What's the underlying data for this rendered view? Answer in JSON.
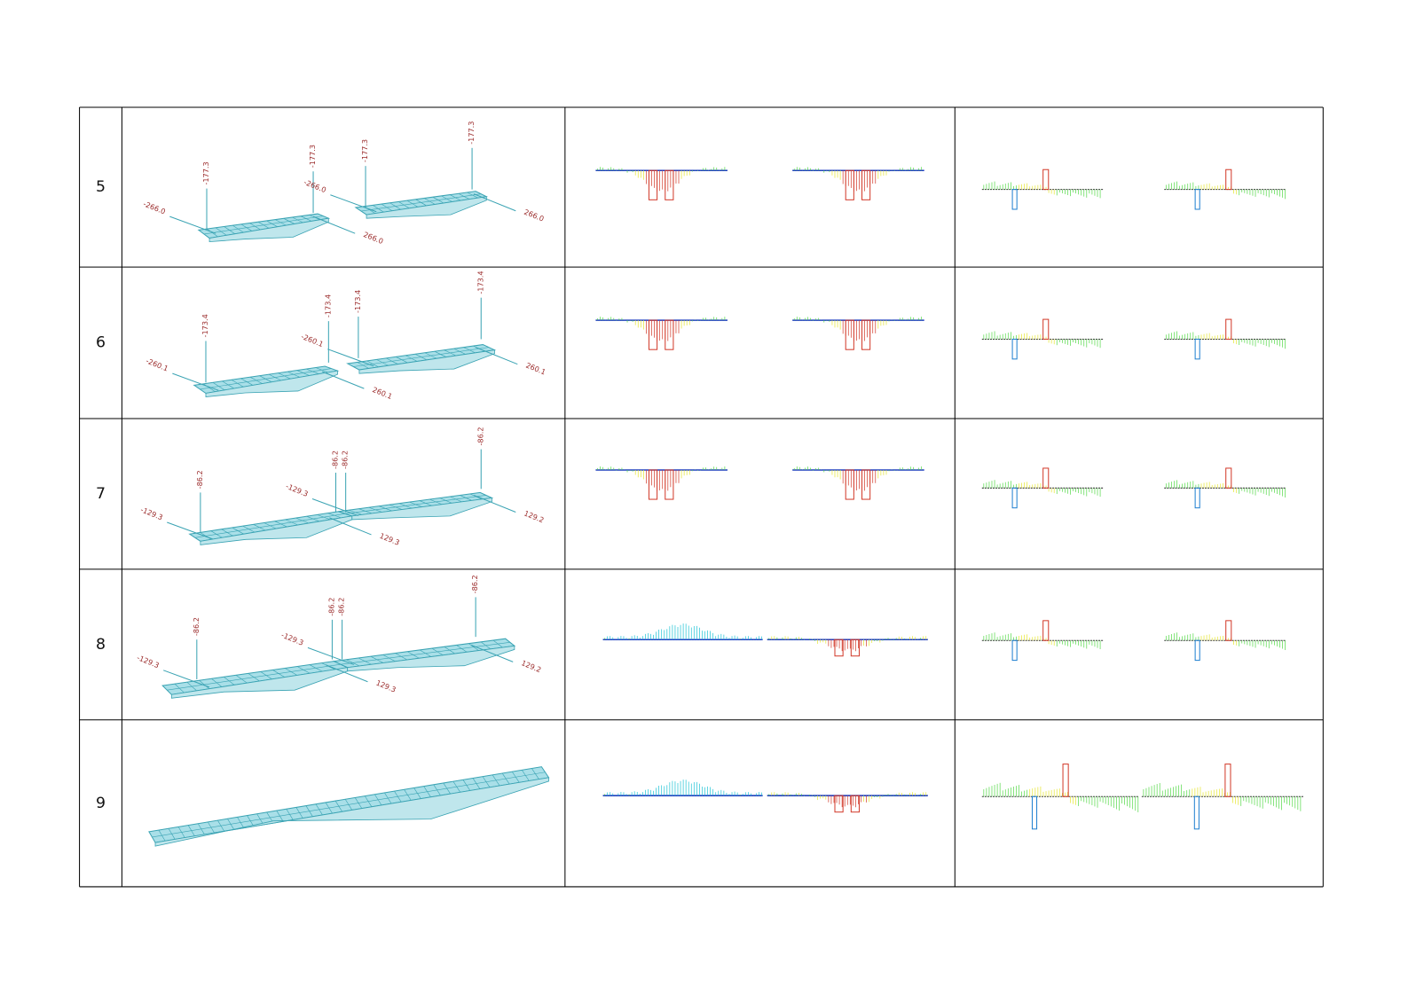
{
  "table": {
    "rows": [
      {
        "label": "5",
        "annotations": [
          "-177.3",
          "-177.3",
          "-177.3",
          "-177.3",
          "-266.0",
          "-266.0",
          "266.0",
          "266.0"
        ]
      },
      {
        "label": "6",
        "annotations": [
          "-173.4",
          "-173.4",
          "-173.4",
          "-173.4",
          "-260.1",
          "-260.1",
          "260.1",
          "260.1"
        ]
      },
      {
        "label": "7",
        "annotations": [
          "-86.2",
          "-86.2",
          "-86.2",
          "-86.2",
          "-129.3",
          "-129.3",
          "129.3",
          "129.2"
        ]
      },
      {
        "label": "8",
        "annotations": [
          "-86.2",
          "-86.2",
          "-86.2",
          "-86.2",
          "-129.3",
          "-129.3",
          "129.3",
          "129.2"
        ]
      },
      {
        "label": "9",
        "annotations": []
      }
    ]
  }
}
